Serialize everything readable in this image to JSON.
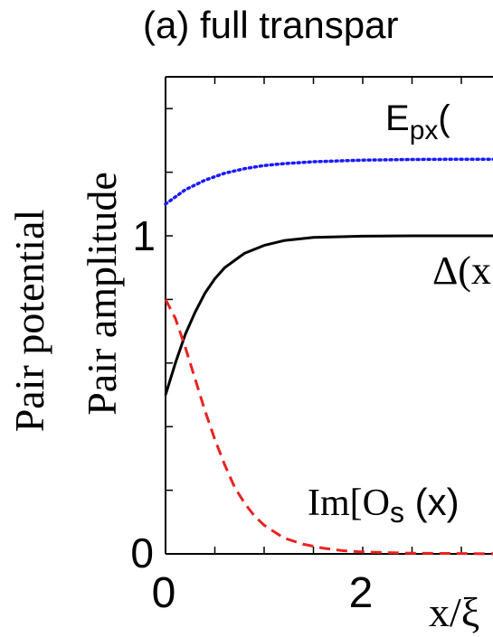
{
  "chart_data": {
    "type": "line",
    "title": "(a) full transpar",
    "ylabel_outer": "Pair potential",
    "ylabel_inner": "Pair amplitude",
    "xlabel": "x/ξ",
    "xlim": [
      0,
      3.4
    ],
    "ylim": [
      0,
      1.45
    ],
    "x_ticks": [
      {
        "value": 0,
        "label": "0"
      },
      {
        "value": 2,
        "label": "2"
      }
    ],
    "y_ticks": [
      {
        "value": 0,
        "label": "0"
      },
      {
        "value": 1,
        "label": "1"
      }
    ],
    "series": [
      {
        "key": "epx",
        "label": "E",
        "label_sub": "px",
        "label_rest": "(",
        "color": "#1a1aff",
        "dash": "dotted",
        "x": [
          0,
          0.2,
          0.4,
          0.6,
          0.8,
          1.0,
          1.2,
          1.5,
          2.0,
          2.5,
          3.0,
          3.4
        ],
        "y": [
          1.1,
          1.145,
          1.175,
          1.197,
          1.211,
          1.221,
          1.227,
          1.233,
          1.238,
          1.24,
          1.241,
          1.241
        ]
      },
      {
        "key": "delta",
        "label": "Δ(x",
        "color": "#000000",
        "dash": "solid",
        "x": [
          0,
          0.1,
          0.2,
          0.3,
          0.4,
          0.5,
          0.6,
          0.8,
          1.0,
          1.2,
          1.5,
          2.0,
          2.5,
          3.0,
          3.4
        ],
        "y": [
          0.5,
          0.6,
          0.69,
          0.76,
          0.82,
          0.865,
          0.9,
          0.945,
          0.97,
          0.985,
          0.995,
          0.999,
          1.0,
          1.0,
          1.0
        ]
      },
      {
        "key": "ims",
        "label": "Im[O",
        "label_sub": "s",
        "label_rest": " (x)",
        "color": "#e8231f",
        "dash": "dashed",
        "x": [
          0,
          0.1,
          0.2,
          0.3,
          0.4,
          0.5,
          0.6,
          0.7,
          0.8,
          0.9,
          1.0,
          1.2,
          1.4,
          1.6,
          1.8,
          2.0,
          2.5,
          3.0,
          3.4
        ],
        "y": [
          0.8,
          0.74,
          0.65,
          0.55,
          0.45,
          0.36,
          0.28,
          0.21,
          0.16,
          0.12,
          0.09,
          0.05,
          0.03,
          0.018,
          0.01,
          0.006,
          0.002,
          0.001,
          0.0
        ]
      }
    ]
  }
}
